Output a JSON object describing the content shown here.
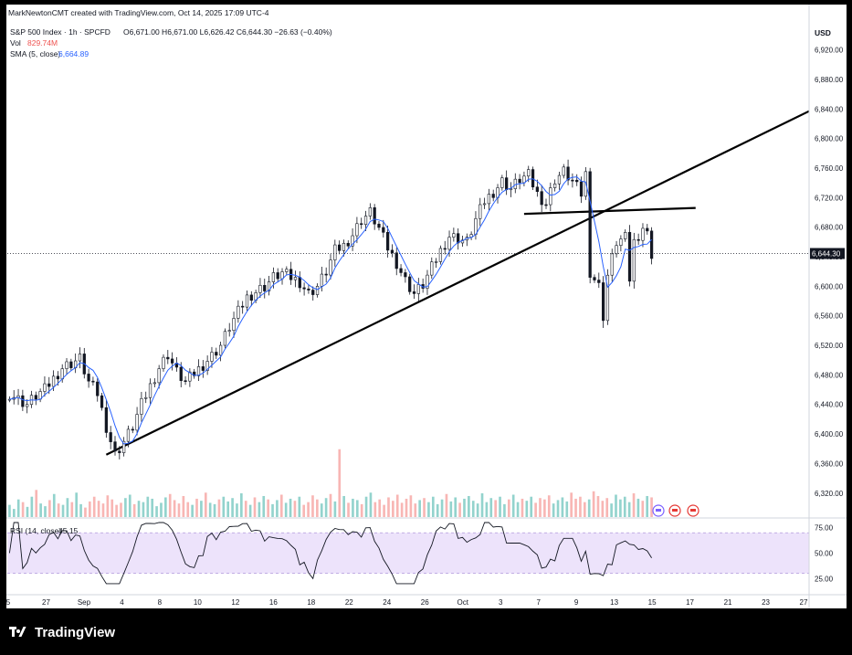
{
  "attribution": "MarkNewtonCMT created with TradingView.com, Oct 14, 2025 17:09 UTC-4",
  "footer_brand": "TradingView",
  "legend": {
    "symbol_line": "S&P 500 Index · 1h · SPCFD",
    "ohlc_text": "O6,671.00  H6,671.00  L6,626.42  C6,644.30  −26.63 (−0.40%)",
    "vol_label": "Vol",
    "vol_value": "829.74M",
    "sma_label": "SMA (5, close)",
    "sma_value": "6,664.89",
    "rsi_label": "RSI (14, close)",
    "rsi_value": "45.15"
  },
  "currency": "USD",
  "colors": {
    "background": "#ffffff",
    "candle": "#131722",
    "sma": "#2962ff",
    "rsi_line": "#131722",
    "rsi_band": "#ede3fb",
    "vol_up": "#80cbc4",
    "vol_down": "#f7a9a7",
    "trendline": "#000000",
    "last_price_label_bg": "#131722"
  },
  "chart_data": [
    {
      "type": "candlestick",
      "symbol": "S&P 500 Index",
      "interval": "1h",
      "y_axis_ticks": [
        "6,920.00",
        "6,880.00",
        "6,840.00",
        "6,800.00",
        "6,760.00",
        "6,720.00",
        "6,680.00",
        "6,640.00",
        "6,600.00",
        "6,560.00",
        "6,520.00",
        "6,480.00",
        "6,440.00",
        "6,400.00",
        "6,360.00",
        "6,320.00"
      ],
      "ylim": [
        6295,
        6938
      ],
      "x_axis_ticks": [
        "5",
        "27",
        "Sep",
        "4",
        "8",
        "10",
        "12",
        "16",
        "18",
        "22",
        "24",
        "26",
        "Oct",
        "3",
        "7",
        "9",
        "13",
        "15",
        "17",
        "21",
        "23",
        "27"
      ],
      "last_price_label": "6,644.30",
      "last_price": 6644.3,
      "price_path": [
        [
          0,
          6455
        ],
        [
          2,
          6447
        ],
        [
          4,
          6440
        ],
        [
          6,
          6452
        ],
        [
          8,
          6460
        ],
        [
          10,
          6475
        ],
        [
          12,
          6490
        ],
        [
          14,
          6496
        ],
        [
          16,
          6502
        ],
        [
          18,
          6470
        ],
        [
          20,
          6455
        ],
        [
          22,
          6410
        ],
        [
          24,
          6372
        ],
        [
          26,
          6390
        ],
        [
          28,
          6410
        ],
        [
          30,
          6440
        ],
        [
          32,
          6465
        ],
        [
          34,
          6490
        ],
        [
          36,
          6508
        ],
        [
          38,
          6484
        ],
        [
          40,
          6470
        ],
        [
          42,
          6482
        ],
        [
          44,
          6494
        ],
        [
          46,
          6506
        ],
        [
          48,
          6520
        ],
        [
          50,
          6545
        ],
        [
          52,
          6565
        ],
        [
          54,
          6585
        ],
        [
          56,
          6593
        ],
        [
          58,
          6600
        ],
        [
          60,
          6612
        ],
        [
          62,
          6618
        ],
        [
          64,
          6612
        ],
        [
          66,
          6606
        ],
        [
          68,
          6590
        ],
        [
          70,
          6600
        ],
        [
          72,
          6620
        ],
        [
          74,
          6648
        ],
        [
          76,
          6655
        ],
        [
          78,
          6670
        ],
        [
          80,
          6690
        ],
        [
          82,
          6700
        ],
        [
          84,
          6678
        ],
        [
          86,
          6652
        ],
        [
          88,
          6632
        ],
        [
          90,
          6608
        ],
        [
          92,
          6590
        ],
        [
          94,
          6602
        ],
        [
          96,
          6625
        ],
        [
          98,
          6648
        ],
        [
          100,
          6668
        ],
        [
          102,
          6665
        ],
        [
          104,
          6660
        ],
        [
          106,
          6690
        ],
        [
          108,
          6715
        ],
        [
          110,
          6728
        ],
        [
          112,
          6742
        ],
        [
          114,
          6732
        ],
        [
          116,
          6745
        ],
        [
          118,
          6750
        ],
        [
          120,
          6725
        ],
        [
          122,
          6712
        ],
        [
          124,
          6745
        ],
        [
          126,
          6755
        ],
        [
          128,
          6742
        ],
        [
          130,
          6725
        ],
        [
          131,
          6752
        ],
        [
          132,
          6620
        ],
        [
          134,
          6600
        ],
        [
          135,
          6560
        ],
        [
          136,
          6615
        ],
        [
          138,
          6660
        ],
        [
          140,
          6665
        ],
        [
          141,
          6610
        ],
        [
          142,
          6660
        ],
        [
          144,
          6680
        ],
        [
          145,
          6670
        ],
        [
          146,
          6644
        ]
      ],
      "sma_period": 5,
      "trendlines": [
        {
          "from": [
            22,
            6372
          ],
          "to": [
            190,
            6837
          ]
        },
        {
          "from": [
            117,
            6698
          ],
          "to": [
            156,
            6706
          ]
        }
      ]
    },
    {
      "type": "bar",
      "name": "Volume",
      "volume_heights": [
        0.18,
        0.12,
        0.26,
        0.22,
        0.15,
        0.3,
        0.4,
        0.2,
        0.16,
        0.25,
        0.34,
        0.2,
        0.18,
        0.28,
        0.22,
        0.36,
        0.19,
        0.14,
        0.23,
        0.3,
        0.24,
        0.2,
        0.32,
        0.26,
        0.18,
        0.21,
        0.28,
        0.33,
        0.19,
        0.24,
        0.22,
        0.3,
        0.27,
        0.16,
        0.21,
        0.29,
        0.34,
        0.25,
        0.2,
        0.31,
        0.22,
        0.18,
        0.27,
        0.24,
        0.36,
        0.21,
        0.19,
        0.26,
        0.3,
        0.23,
        0.28,
        0.2,
        0.35,
        0.24,
        0.18,
        0.29,
        0.22,
        0.31,
        0.26,
        0.19,
        0.25,
        0.33,
        0.21,
        0.27,
        0.24,
        0.3,
        0.18,
        0.22,
        0.32,
        0.26,
        0.2,
        0.28,
        0.34,
        0.23,
        1.0,
        0.31,
        0.21,
        0.27,
        0.25,
        0.19,
        0.3,
        0.36,
        0.22,
        0.26,
        0.18,
        0.29,
        0.24,
        0.33,
        0.21,
        0.27,
        0.32,
        0.2,
        0.25,
        0.28,
        0.22,
        0.3,
        0.19,
        0.26,
        0.34,
        0.23,
        0.29,
        0.21,
        0.27,
        0.31,
        0.24,
        0.2,
        0.35,
        0.22,
        0.28,
        0.25,
        0.3,
        0.19,
        0.26,
        0.33,
        0.22,
        0.27,
        0.24,
        0.3,
        0.21,
        0.28,
        0.26,
        0.32,
        0.2,
        0.25,
        0.29,
        0.23,
        0.36,
        0.27,
        0.3,
        0.22,
        0.26,
        0.38,
        0.31,
        0.24,
        0.28,
        0.2,
        0.33,
        0.26,
        0.3,
        0.22,
        0.35,
        0.27,
        0.24,
        0.31,
        0.29
      ]
    },
    {
      "type": "line",
      "name": "RSI (14, close)",
      "y_axis_ticks": [
        "75.00",
        "50.00",
        "25.00"
      ],
      "ylim": [
        10,
        80
      ],
      "band": [
        30,
        70
      ],
      "last_value": 45.15
    }
  ]
}
